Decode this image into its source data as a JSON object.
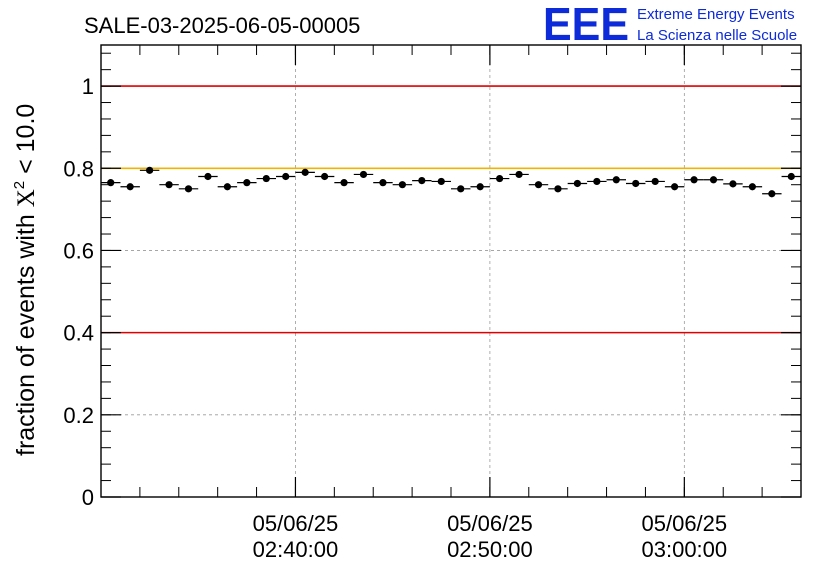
{
  "chart_data": {
    "type": "scatter",
    "title": "SALE-03-2025-06-05-00005",
    "ylabel": {
      "prefix": "fraction of events with ",
      "symbol": "X",
      "superscript": "2",
      "suffix": " < 10.0"
    },
    "xlabel": "",
    "xlim": [
      0,
      36
    ],
    "ylim": [
      0,
      1.1
    ],
    "yticks": [
      {
        "value": 0,
        "label": "0"
      },
      {
        "value": 0.2,
        "label": "0.2"
      },
      {
        "value": 0.4,
        "label": "0.4"
      },
      {
        "value": 0.6,
        "label": "0.6"
      },
      {
        "value": 0.8,
        "label": "0.8"
      },
      {
        "value": 1.0,
        "label": "1"
      }
    ],
    "xticks": [
      {
        "value": 10,
        "date": "05/06/25",
        "time": "02:40:00"
      },
      {
        "value": 20,
        "date": "05/06/25",
        "time": "02:50:00"
      },
      {
        "value": 30,
        "date": "05/06/25",
        "time": "03:00:00"
      }
    ],
    "x_minor_step": 2,
    "grid": true,
    "reference_lines": [
      {
        "y": 1.0,
        "color": "#e00000"
      },
      {
        "y": 0.4,
        "color": "#e00000"
      },
      {
        "y": 0.8,
        "color": "#f0b400"
      }
    ],
    "series": [
      {
        "name": "fraction",
        "color": "#000000",
        "bin_width": 1,
        "x": [
          0.5,
          1.5,
          2.5,
          3.5,
          4.5,
          5.5,
          6.5,
          7.5,
          8.5,
          9.5,
          10.5,
          11.5,
          12.5,
          13.5,
          14.5,
          15.5,
          16.5,
          17.5,
          18.5,
          19.5,
          20.5,
          21.5,
          22.5,
          23.5,
          24.5,
          25.5,
          26.5,
          27.5,
          28.5,
          29.5,
          30.5,
          31.5,
          32.5,
          33.5,
          34.5,
          35.5
        ],
        "y": [
          0.765,
          0.755,
          0.795,
          0.76,
          0.75,
          0.78,
          0.755,
          0.765,
          0.775,
          0.78,
          0.79,
          0.78,
          0.765,
          0.785,
          0.765,
          0.76,
          0.77,
          0.768,
          0.75,
          0.755,
          0.775,
          0.785,
          0.76,
          0.75,
          0.763,
          0.768,
          0.772,
          0.763,
          0.768,
          0.755,
          0.772,
          0.772,
          0.762,
          0.755,
          0.738,
          0.78
        ],
        "yerr": [
          0.008,
          0.008,
          0.008,
          0.008,
          0.008,
          0.008,
          0.008,
          0.008,
          0.008,
          0.008,
          0.008,
          0.008,
          0.008,
          0.008,
          0.008,
          0.008,
          0.008,
          0.008,
          0.008,
          0.008,
          0.008,
          0.008,
          0.008,
          0.008,
          0.008,
          0.008,
          0.008,
          0.008,
          0.008,
          0.008,
          0.008,
          0.008,
          0.008,
          0.008,
          0.008,
          0.008
        ]
      }
    ]
  },
  "logo": {
    "mark": "EEE",
    "line1": "Extreme Energy Events",
    "line2": "La Scienza nelle Scuole",
    "color": "#0d2bd9"
  }
}
